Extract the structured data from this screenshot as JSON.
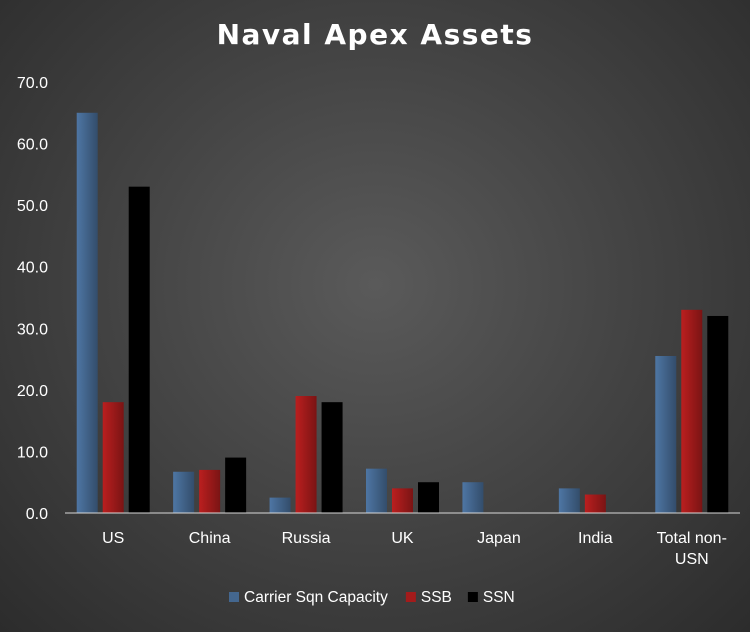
{
  "chart_data": {
    "type": "bar",
    "title": "Naval Apex Assets",
    "categories": [
      "US",
      "China",
      "Russia",
      "UK",
      "Japan",
      "India",
      "Total non-USN"
    ],
    "category_lines": [
      [
        "US"
      ],
      [
        "China"
      ],
      [
        "Russia"
      ],
      [
        "UK"
      ],
      [
        "Japan"
      ],
      [
        "India"
      ],
      [
        "Total non-",
        "USN"
      ]
    ],
    "series": [
      {
        "name": "Carrier Sqn Capacity",
        "color": "#44678f",
        "values": [
          65,
          6.7,
          2.5,
          7.2,
          5,
          4,
          25.5
        ]
      },
      {
        "name": "SSB",
        "color": "#a31b1b",
        "values": [
          18,
          7,
          19,
          4,
          0,
          3,
          33
        ]
      },
      {
        "name": "SSN",
        "color": "#000000",
        "values": [
          53,
          9,
          18,
          5,
          0,
          0,
          32
        ]
      }
    ],
    "xlabel": "",
    "ylabel": "",
    "ylim": [
      0,
      70
    ],
    "yticks": [
      "0.0",
      "10.0",
      "20.0",
      "30.0",
      "40.0",
      "50.0",
      "60.0",
      "70.0"
    ],
    "grid": false,
    "legend_position": "bottom"
  }
}
